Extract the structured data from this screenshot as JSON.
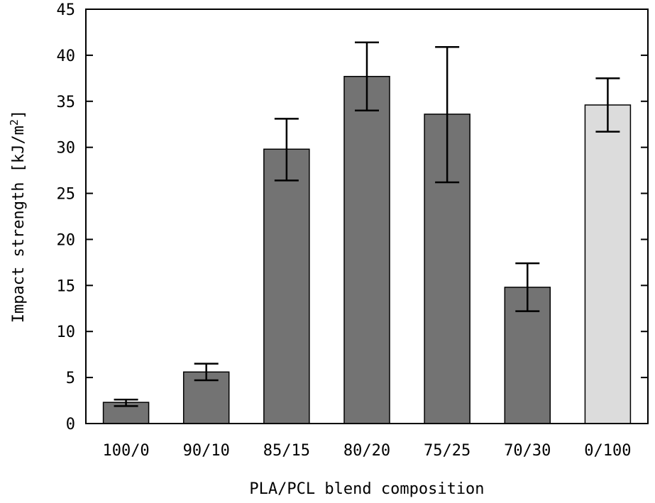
{
  "chart_data": {
    "type": "bar",
    "categories": [
      "100/0",
      "90/10",
      "85/15",
      "80/20",
      "75/25",
      "70/30",
      "0/100"
    ],
    "values": [
      2.3,
      5.6,
      29.8,
      37.7,
      33.6,
      14.8,
      34.6
    ],
    "error_low": [
      1.9,
      4.7,
      26.4,
      34.0,
      26.2,
      12.2,
      31.7
    ],
    "error_high": [
      2.6,
      6.5,
      33.1,
      41.4,
      40.9,
      17.4,
      37.5
    ],
    "bar_colors": [
      "#737373",
      "#737373",
      "#737373",
      "#737373",
      "#737373",
      "#737373",
      "#dcdcdc"
    ],
    "title": "",
    "xlabel": "PLA/PCL blend composition",
    "ylabel_main": "Impact strength [kJ/m",
    "ylabel_sup": "2",
    "ylabel_end": "]",
    "ylim": [
      0,
      45
    ],
    "yticks": [
      0,
      5,
      10,
      15,
      20,
      25,
      30,
      35,
      40,
      45
    ],
    "grid": false,
    "legend": "none"
  }
}
